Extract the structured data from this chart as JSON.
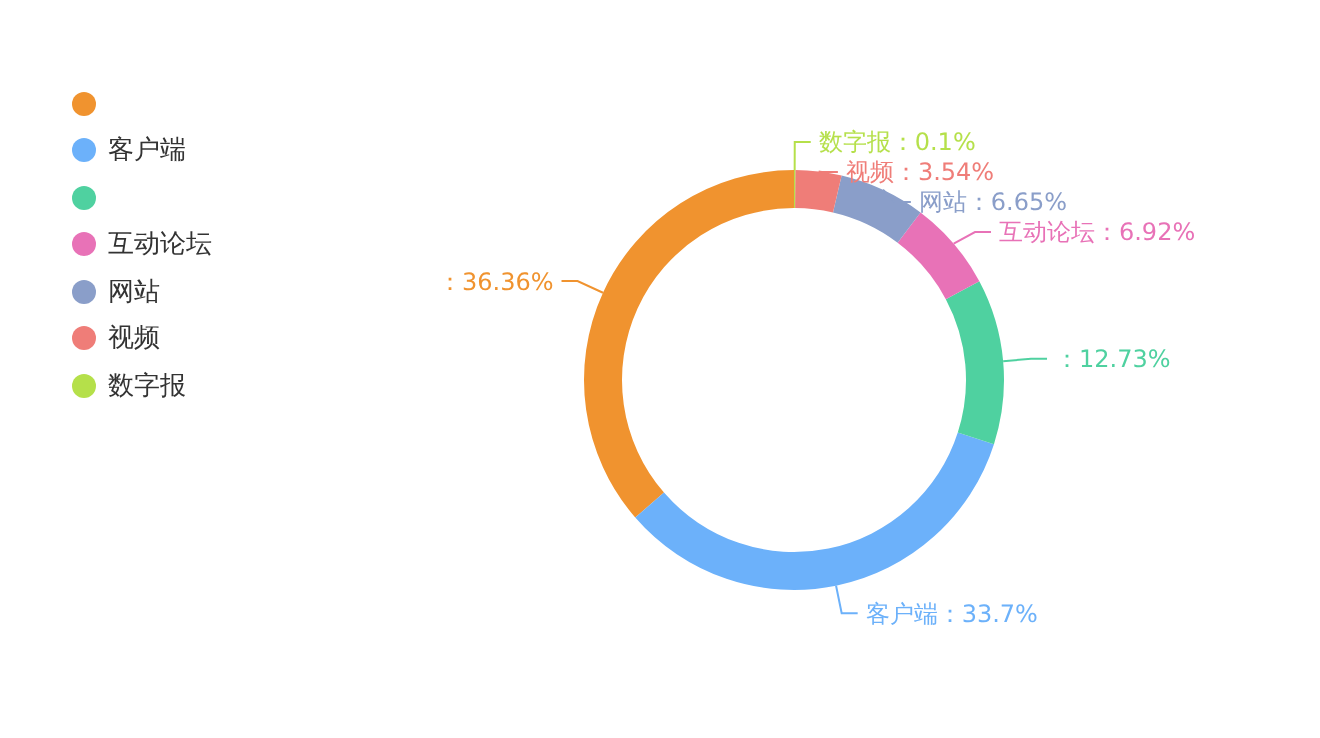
{
  "chart_data": {
    "type": "donut",
    "categories": [
      null,
      "客户端",
      null,
      "互动论坛",
      "网站",
      "视频",
      "数字报"
    ],
    "values": [
      36.36,
      33.7,
      12.73,
      6.92,
      6.65,
      3.54,
      0.1
    ],
    "colors": [
      "#f0932f",
      "#6cb1fa",
      "#4fd1a0",
      "#e872b7",
      "#8a9ec9",
      "#ef7d78",
      "#b5e04a"
    ],
    "value_labels": [
      "：36.36%",
      "：33.7%",
      "：12.73%",
      "：6.92%",
      "：6.65%",
      "：3.54%",
      "：0.1%"
    ],
    "legend": "top left"
  }
}
